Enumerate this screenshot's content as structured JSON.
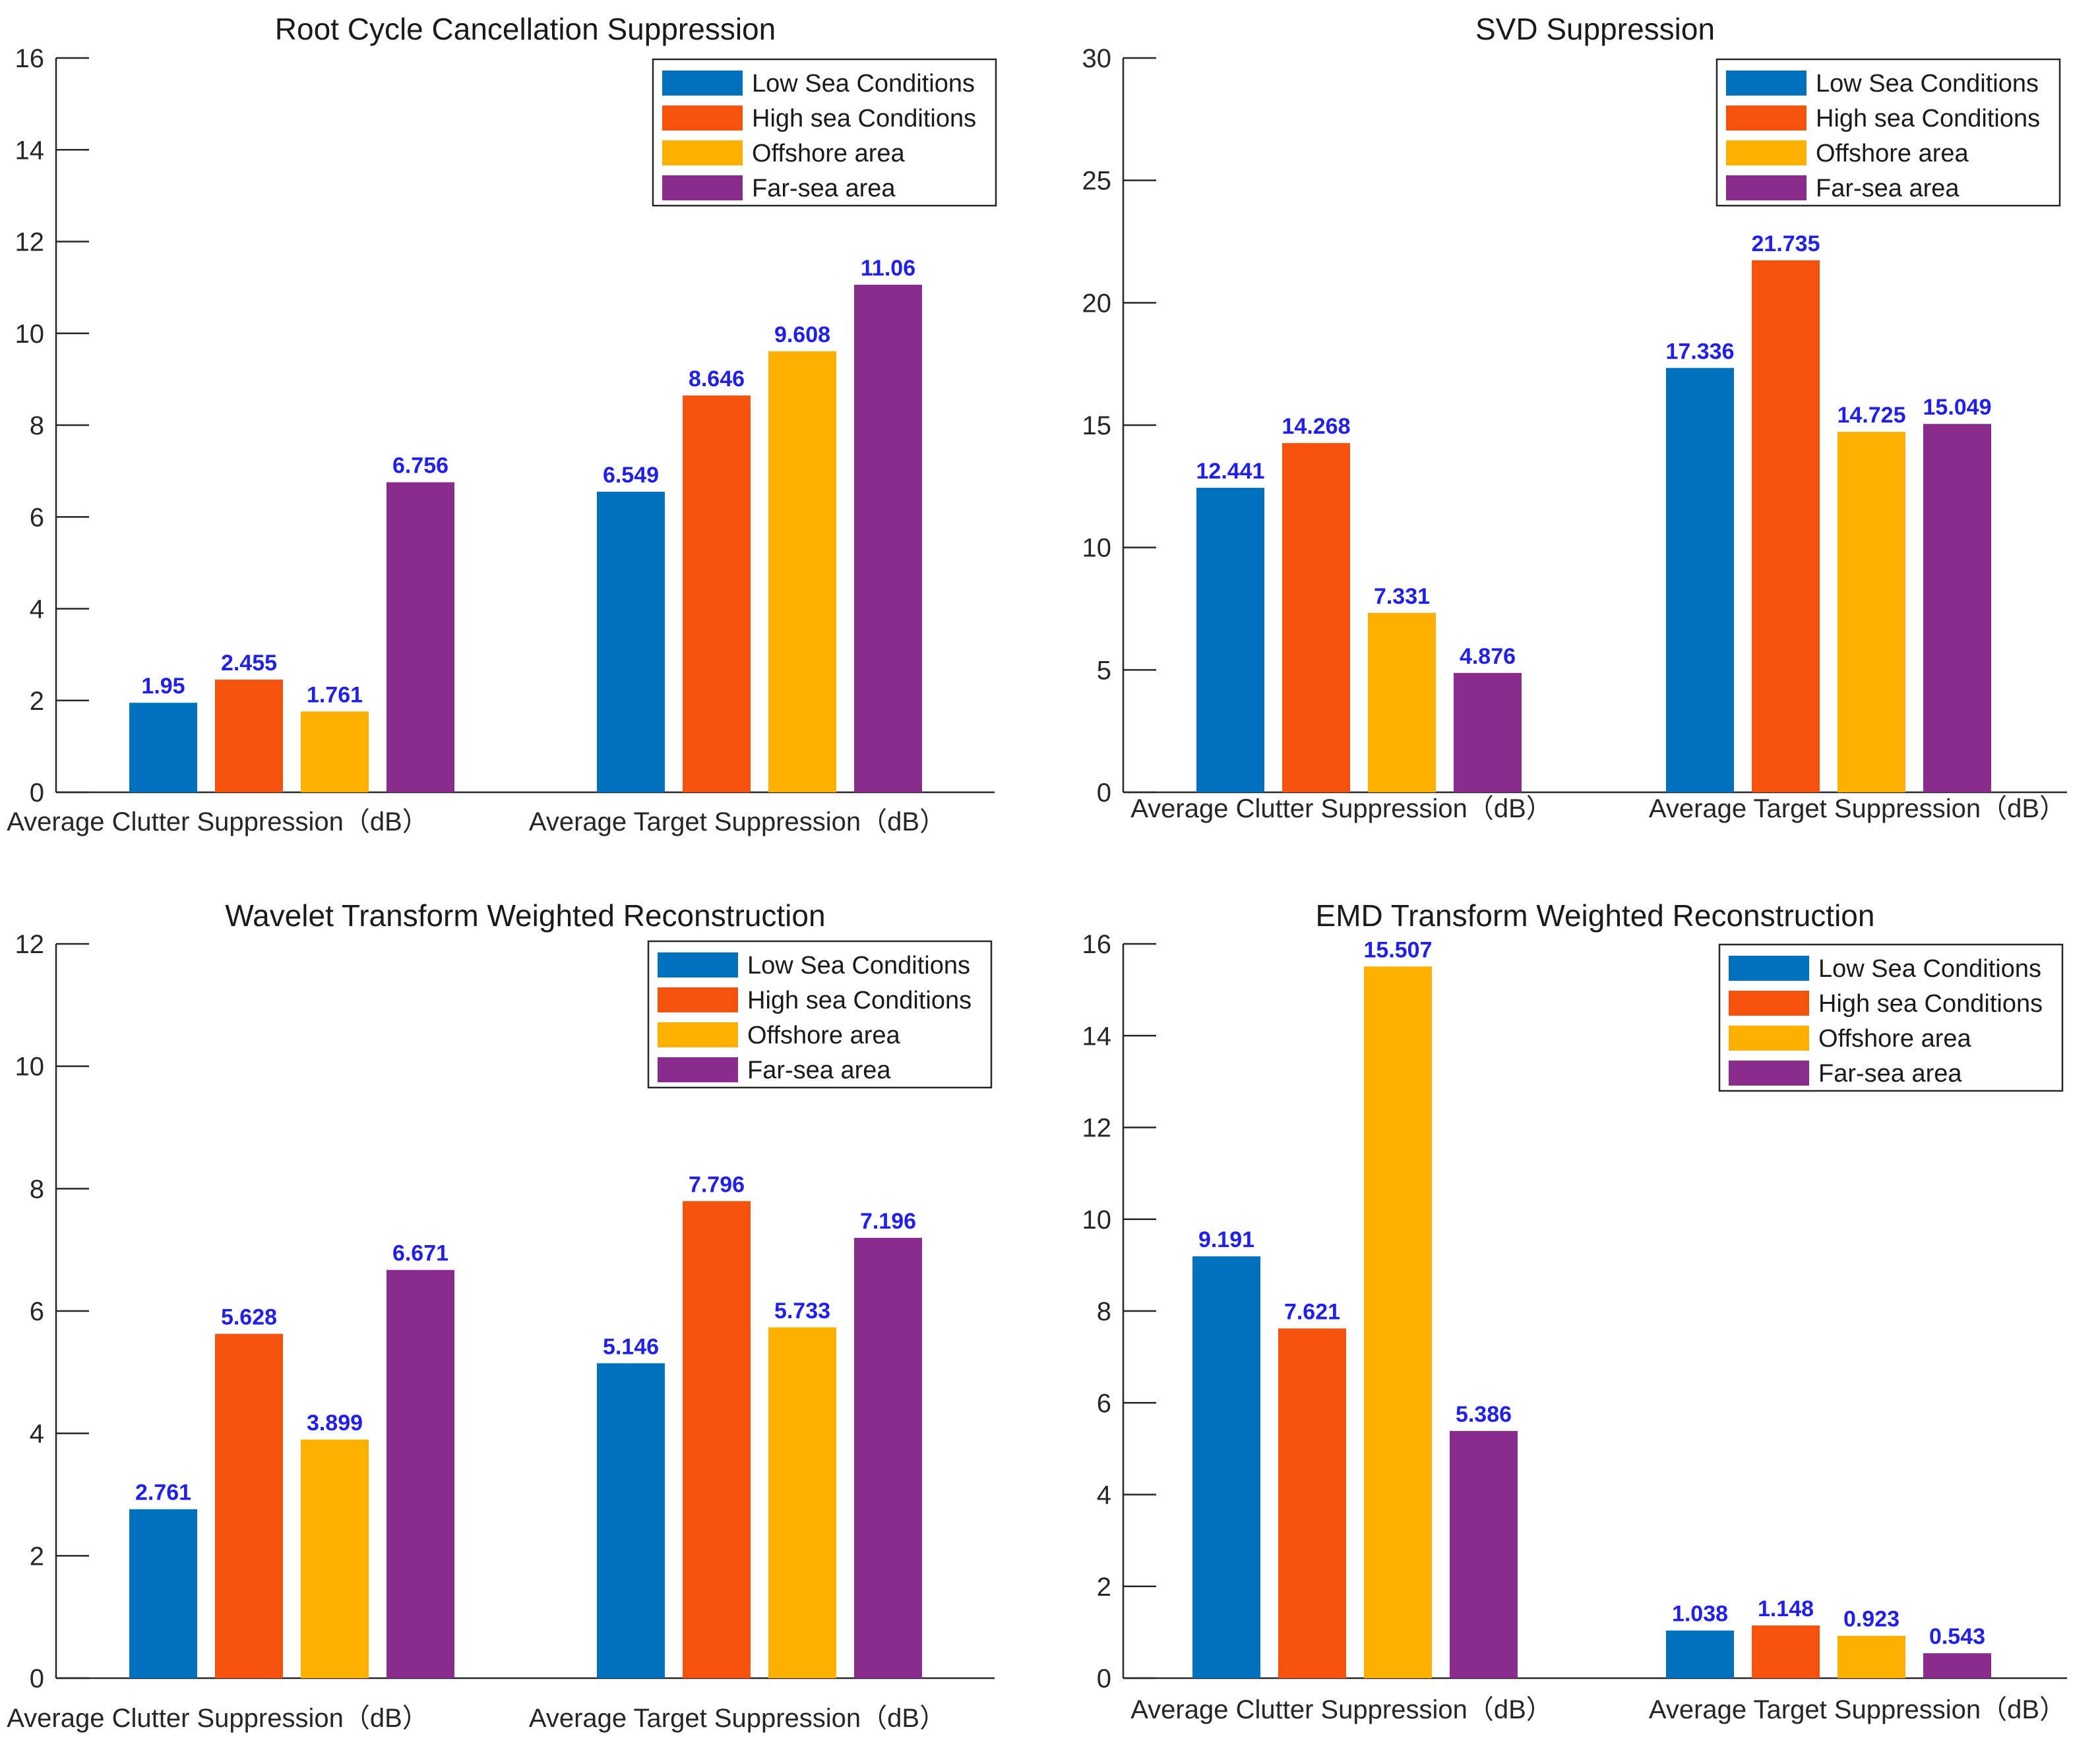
{
  "colors": {
    "series": [
      "#0072bd",
      "#f4520d",
      "#fdb000",
      "#8a2c8e"
    ],
    "value_label": "#1f1ff0"
  },
  "chart_data": [
    {
      "type": "bar",
      "title": "Root Cycle Cancellation Suppression",
      "categories": [
        "Average Clutter Suppression（dB）",
        "Average Target Suppression（dB）"
      ],
      "series": [
        {
          "name": "Low Sea Conditions",
          "values": [
            1.95,
            6.549
          ]
        },
        {
          "name": "High sea Conditions",
          "values": [
            2.455,
            8.646
          ]
        },
        {
          "name": "Offshore area",
          "values": [
            1.761,
            9.608
          ]
        },
        {
          "name": "Far-sea area",
          "values": [
            6.756,
            11.06
          ]
        }
      ],
      "value_labels": [
        [
          "1.95",
          "6.549"
        ],
        [
          "2.455",
          "8.646"
        ],
        [
          "1.761",
          "9.608"
        ],
        [
          "6.756",
          "11.06"
        ]
      ],
      "ylim": [
        0,
        16
      ],
      "yticks": [
        0,
        2,
        4,
        6,
        8,
        10,
        12,
        14,
        16
      ],
      "xlabel": "",
      "ylabel": "",
      "grid": false,
      "legend_position": "top-right"
    },
    {
      "type": "bar",
      "title": "SVD Suppression",
      "categories": [
        "Average Clutter Suppression（dB）",
        "Average Target Suppression（dB）"
      ],
      "series": [
        {
          "name": "Low Sea Conditions",
          "values": [
            12.441,
            17.336
          ]
        },
        {
          "name": "High sea Conditions",
          "values": [
            14.268,
            21.735
          ]
        },
        {
          "name": "Offshore area",
          "values": [
            7.331,
            14.725
          ]
        },
        {
          "name": "Far-sea area",
          "values": [
            4.876,
            15.049
          ]
        }
      ],
      "value_labels": [
        [
          "12.441",
          "17.336"
        ],
        [
          "14.268",
          "21.735"
        ],
        [
          "7.331",
          "14.725"
        ],
        [
          "4.876",
          "15.049"
        ]
      ],
      "ylim": [
        0,
        30
      ],
      "yticks": [
        0,
        5,
        10,
        15,
        20,
        25,
        30
      ],
      "xlabel": "",
      "ylabel": "",
      "grid": false,
      "legend_position": "top-right"
    },
    {
      "type": "bar",
      "title": "Wavelet Transform Weighted Reconstruction",
      "categories": [
        "Average Clutter Suppression（dB）",
        "Average Target Suppression（dB）"
      ],
      "series": [
        {
          "name": "Low Sea Conditions",
          "values": [
            2.761,
            5.146
          ]
        },
        {
          "name": "High sea Conditions",
          "values": [
            5.628,
            7.796
          ]
        },
        {
          "name": "Offshore area",
          "values": [
            3.899,
            5.733
          ]
        },
        {
          "name": "Far-sea area",
          "values": [
            6.671,
            7.196
          ]
        }
      ],
      "value_labels": [
        [
          "2.761",
          "5.146"
        ],
        [
          "5.628",
          "7.796"
        ],
        [
          "3.899",
          "5.733"
        ],
        [
          "6.671",
          "7.196"
        ]
      ],
      "ylim": [
        0,
        12
      ],
      "yticks": [
        0,
        2,
        4,
        6,
        8,
        10,
        12
      ],
      "xlabel": "",
      "ylabel": "",
      "grid": false,
      "legend_position": "top-right"
    },
    {
      "type": "bar",
      "title": "EMD Transform Weighted Reconstruction",
      "categories": [
        "Average Clutter Suppression（dB）",
        "Average Target Suppression（dB）"
      ],
      "series": [
        {
          "name": "Low Sea Conditions",
          "values": [
            9.191,
            1.038
          ]
        },
        {
          "name": "High sea Conditions",
          "values": [
            7.621,
            1.148
          ]
        },
        {
          "name": "Offshore area",
          "values": [
            15.507,
            0.923
          ]
        },
        {
          "name": "Far-sea area",
          "values": [
            5.386,
            0.543
          ]
        }
      ],
      "value_labels": [
        [
          "9.191",
          "1.038"
        ],
        [
          "7.621",
          "1.148"
        ],
        [
          "15.507",
          "0.923"
        ],
        [
          "5.386",
          "0.543"
        ]
      ],
      "ylim": [
        0,
        16
      ],
      "yticks": [
        0,
        2,
        4,
        6,
        8,
        10,
        12,
        14,
        16
      ],
      "xlabel": "",
      "ylabel": "",
      "grid": false,
      "legend_position": "top-right"
    }
  ]
}
